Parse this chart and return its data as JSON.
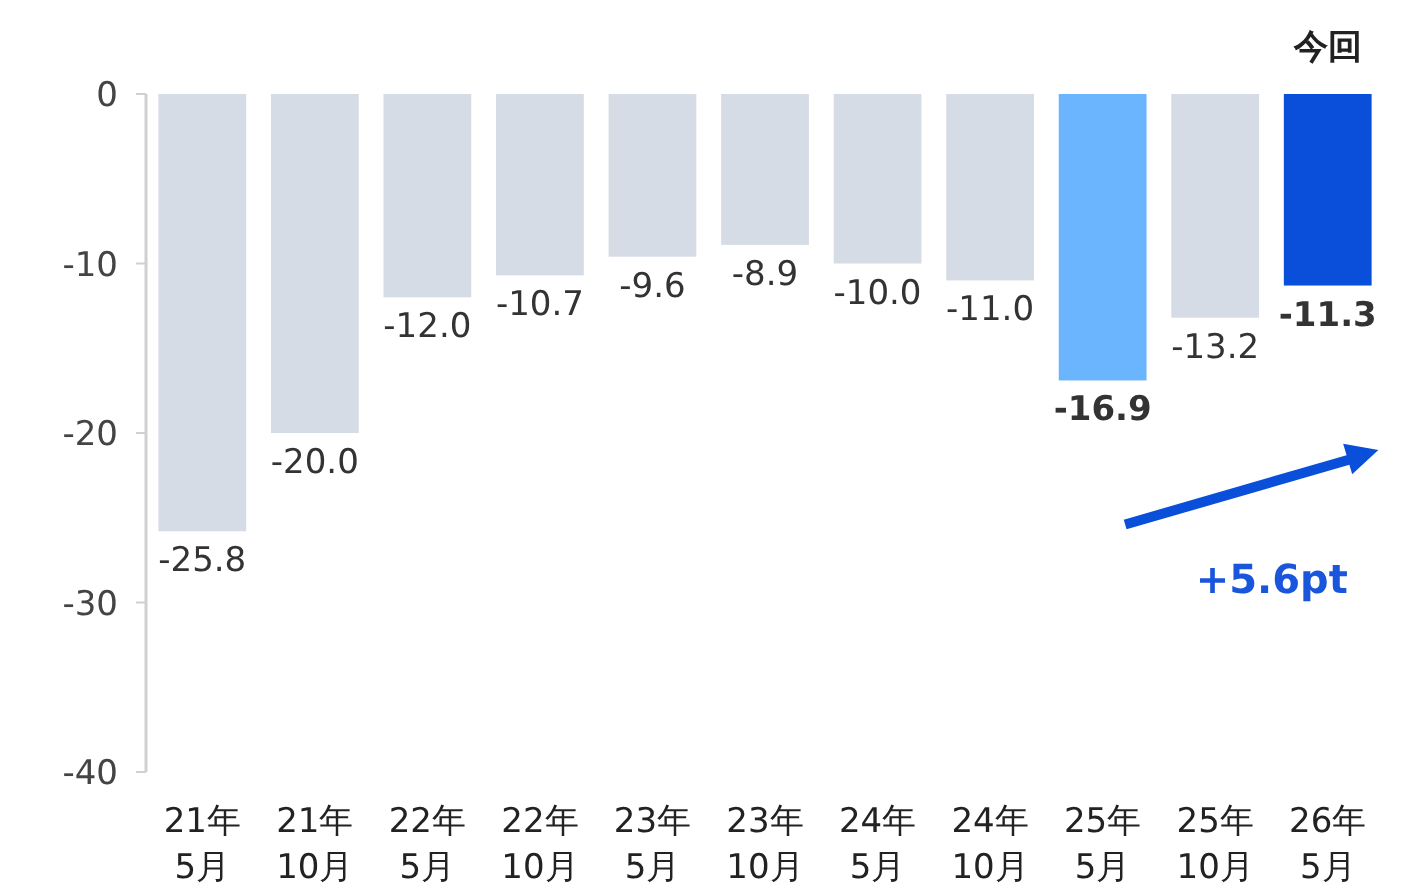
{
  "chart_data": {
    "type": "bar",
    "categories": [
      "21年\n5月",
      "21年\n10月",
      "22年\n5月",
      "22年\n10月",
      "23年\n5月",
      "23年\n10月",
      "24年\n5月",
      "24年\n10月",
      "25年\n5月",
      "25年\n10月",
      "26年\n5月"
    ],
    "values": [
      -25.8,
      -20.0,
      -12.0,
      -10.7,
      -9.6,
      -8.9,
      -10.0,
      -11.0,
      -16.9,
      -13.2,
      -11.3
    ],
    "colors": [
      "#d6dce5",
      "#d6dce5",
      "#d6dce5",
      "#d6dce5",
      "#d6dce5",
      "#d6dce5",
      "#d6dce5",
      "#d6dce5",
      "#6bb5ff",
      "#d6dce5",
      "#0a4fd9"
    ],
    "value_labels": [
      "-25.8",
      "-20.0",
      "-12.0",
      "-10.7",
      "-9.6",
      "-8.9",
      "-10.0",
      "-11.0",
      "-16.9",
      "-13.2",
      "-11.3"
    ],
    "ylim": [
      -40,
      0
    ],
    "yticks": [
      0,
      -10,
      -20,
      -30,
      -40
    ],
    "grid": false,
    "annotations": [
      {
        "text": "今回",
        "x": "26年\n5月",
        "y": 0
      },
      "+5.6pt"
    ]
  }
}
